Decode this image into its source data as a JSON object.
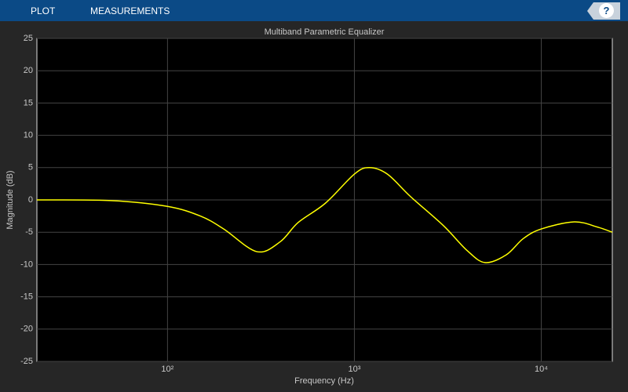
{
  "toolbar": {
    "tabs": [
      "PLOT",
      "MEASUREMENTS"
    ],
    "help": "?"
  },
  "chart_data": {
    "type": "line",
    "title": "Multiband Parametric Equalizer",
    "x_label": "Frequency (Hz)",
    "y_label": "Magnitude (dB)",
    "x": [
      20,
      50,
      100,
      150,
      200,
      300,
      400,
      500,
      700,
      1000,
      1200,
      1500,
      2000,
      3000,
      4000,
      5000,
      6500,
      8000,
      10000,
      15000,
      20000,
      24000
    ],
    "series": [
      {
        "name": "Magnitude",
        "color": "#ffff00",
        "values": [
          0,
          -0.1,
          -1.0,
          -2.5,
          -4.5,
          -8.0,
          -6.5,
          -3.5,
          -0.5,
          4,
          5,
          4,
          0.5,
          -4,
          -7.8,
          -9.7,
          -8.5,
          -6,
          -4.5,
          -3.4,
          -4.2,
          -5
        ]
      }
    ],
    "xscale": "log",
    "xlim": [
      20,
      24000
    ],
    "xticks": [
      {
        "value": 100,
        "label": "10²"
      },
      {
        "value": 1000,
        "label": "10³"
      },
      {
        "value": 10000,
        "label": "10⁴"
      }
    ],
    "ylim": [
      -25,
      25
    ],
    "yticks": [
      -25,
      -20,
      -15,
      -10,
      -5,
      0,
      5,
      10,
      15,
      20,
      25
    ],
    "grid": true
  }
}
